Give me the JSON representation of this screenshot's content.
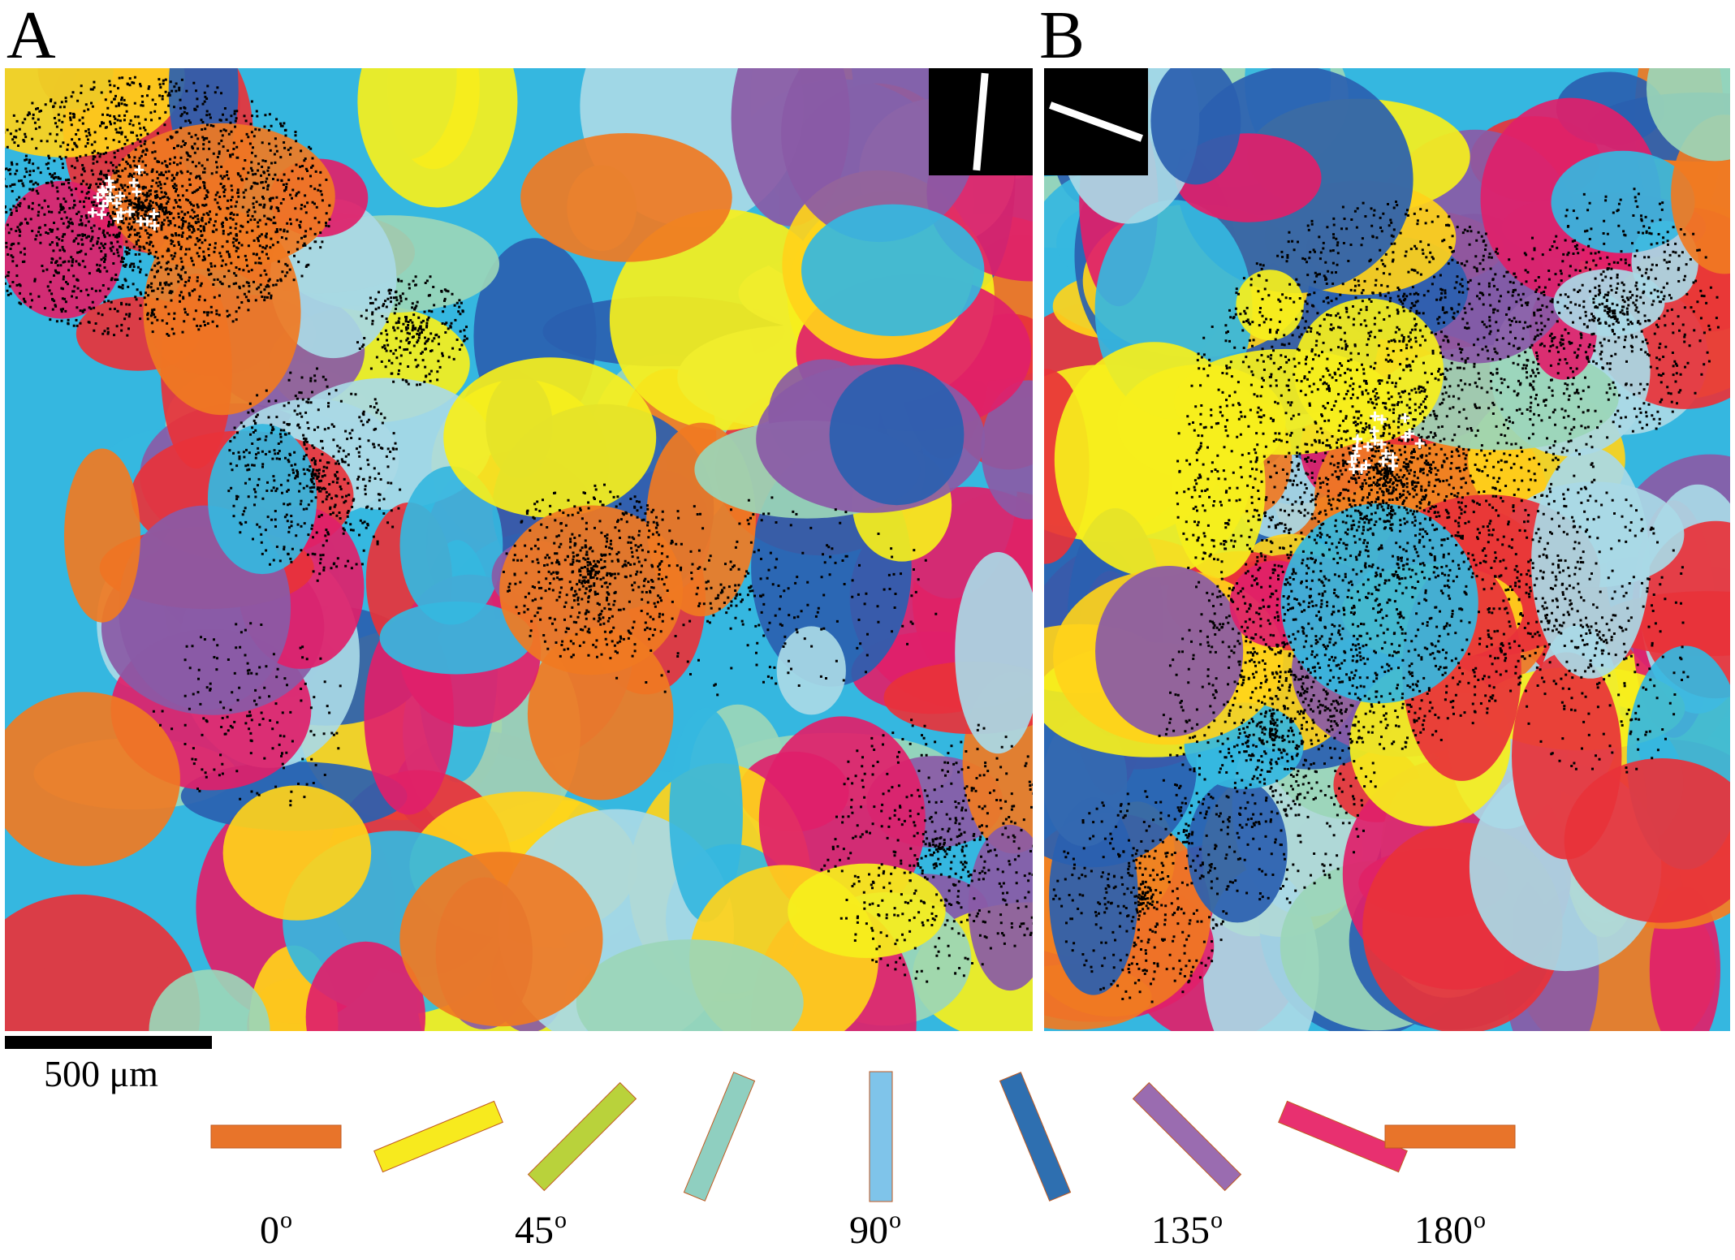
{
  "figure": {
    "panels": [
      {
        "letter": "A",
        "stimulus_angle_deg": 85
      },
      {
        "letter": "B",
        "stimulus_angle_deg": 160
      }
    ],
    "scale_bar_label": "500 μm",
    "orientation_key": {
      "bars": [
        {
          "angle_deg": 0,
          "color": "#e8742a"
        },
        {
          "angle_deg": 22.5,
          "color": "#f7ea1e"
        },
        {
          "angle_deg": 45,
          "color": "#b9d23b"
        },
        {
          "angle_deg": 67.5,
          "color": "#8fcfc0"
        },
        {
          "angle_deg": 90,
          "color": "#7fc4ea"
        },
        {
          "angle_deg": 112.5,
          "color": "#2e6fb0"
        },
        {
          "angle_deg": 135,
          "color": "#9a6cb0"
        },
        {
          "angle_deg": 157.5,
          "color": "#e83070"
        },
        {
          "angle_deg": 180,
          "color": "#e8742a"
        }
      ],
      "labels": [
        {
          "value": "0",
          "unit": "o"
        },
        {
          "value": "45",
          "unit": "o"
        },
        {
          "value": "90",
          "unit": "o"
        },
        {
          "value": "135",
          "unit": "o"
        },
        {
          "value": "180",
          "unit": "o"
        }
      ]
    },
    "colors": {
      "map_palette": [
        "#e8323a",
        "#ffd21a",
        "#f6ef1c",
        "#9bd6b8",
        "#35b7e0",
        "#2a5fb0",
        "#8a5aa6",
        "#e0206a",
        "#f07a22",
        "#a9d9e6"
      ],
      "axon_color": "#000000",
      "soma_marker_color": "#ffffff"
    }
  }
}
